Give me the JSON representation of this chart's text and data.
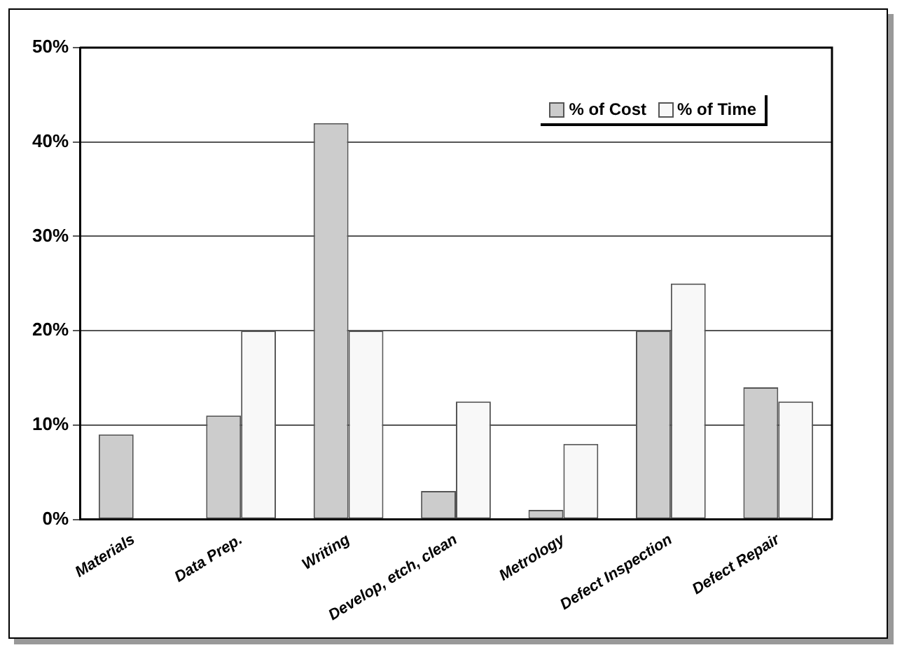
{
  "chart_data": {
    "type": "bar",
    "categories": [
      "Materials",
      "Data Prep.",
      "Writing",
      "Develop, etch, clean",
      "Metrology",
      "Defect Inspection",
      "Defect Repair"
    ],
    "series": [
      {
        "name": "% of Cost",
        "color": "#cccccc",
        "values": [
          9,
          11,
          42,
          3,
          1,
          20,
          14
        ]
      },
      {
        "name": "% of Time",
        "color": "#f8f8f8",
        "values": [
          null,
          20,
          20,
          12.5,
          8,
          25,
          12.5
        ]
      }
    ],
    "ylim": [
      0,
      50
    ],
    "yticks": [
      {
        "value": 0,
        "label": "0%"
      },
      {
        "value": 10,
        "label": "10%"
      },
      {
        "value": 20,
        "label": "20%"
      },
      {
        "value": 30,
        "label": "30%"
      },
      {
        "value": 40,
        "label": "40%"
      },
      {
        "value": 50,
        "label": "50%"
      }
    ],
    "grid": "y",
    "legend": "top right"
  }
}
